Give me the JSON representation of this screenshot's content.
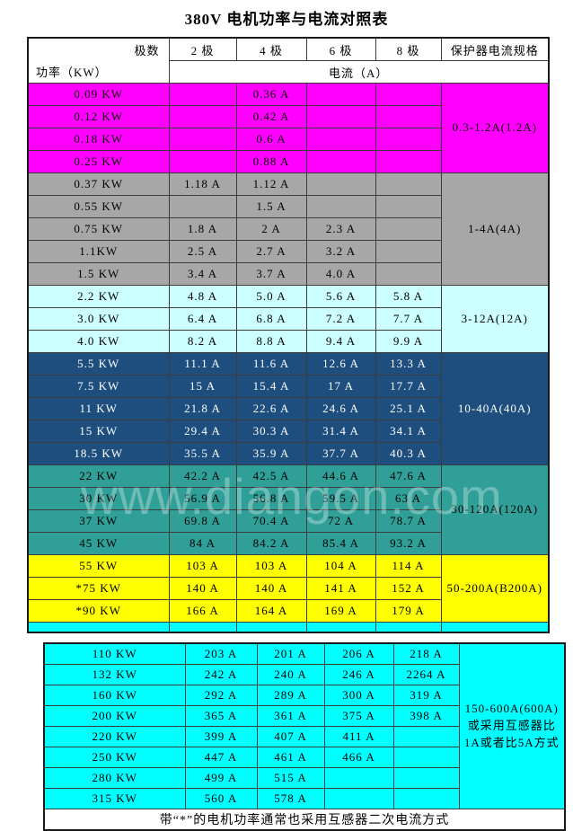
{
  "title": "380V 电机功率与电流对照表",
  "watermark": "www.diangon.com",
  "colors": {
    "magenta": "#ff00ff",
    "gray": "#a7a7a7",
    "light_cyan": "#ccffff",
    "navy": "#1d4e7e",
    "teal": "#2f9f97",
    "yellow": "#ffff00",
    "cyan": "#00ffff",
    "navy_text": "#ffffff"
  },
  "chart_data": {
    "type": "table",
    "title": "380V 电机功率与电流对照表",
    "header": {
      "corner_top": "极数",
      "corner_bottom": "功率（KW）",
      "poles": [
        "2 极",
        "4 极",
        "6 极",
        "8 极"
      ],
      "protection": "保护器电流规格",
      "current_label": "电流（A）"
    },
    "groups": [
      {
        "bg": "#ff00ff",
        "text": "#000000",
        "protection": "0.3-1.2A(1.2A)",
        "rows": [
          {
            "power": "0.09 KW",
            "currents": [
              "",
              "0.36 A",
              "",
              ""
            ]
          },
          {
            "power": "0.12 KW",
            "currents": [
              "",
              "0.42 A",
              "",
              ""
            ]
          },
          {
            "power": "0.18 KW",
            "currents": [
              "",
              "0.6 A",
              "",
              ""
            ]
          },
          {
            "power": "0.25 KW",
            "currents": [
              "",
              "0.88 A",
              "",
              ""
            ]
          }
        ]
      },
      {
        "bg": "#a7a7a7",
        "text": "#000000",
        "protection": "1-4A(4A)",
        "rows": [
          {
            "power": "0.37 KW",
            "currents": [
              "1.18 A",
              "1.12 A",
              "",
              ""
            ]
          },
          {
            "power": "0.55 KW",
            "currents": [
              "",
              "1.5 A",
              "",
              ""
            ]
          },
          {
            "power": "0.75 KW",
            "currents": [
              "1.8 A",
              "2 A",
              "2.3 A",
              ""
            ]
          },
          {
            "power": "1.1KW",
            "currents": [
              "2.5 A",
              "2.7 A",
              "3.2 A",
              ""
            ]
          },
          {
            "power": "1.5 KW",
            "currents": [
              "3.4 A",
              "3.7 A",
              "4.0 A",
              ""
            ]
          }
        ]
      },
      {
        "bg": "#ccffff",
        "text": "#000000",
        "protection": "3-12A(12A)",
        "rows": [
          {
            "power": "2.2 KW",
            "currents": [
              "4.8 A",
              "5.0 A",
              "5.6 A",
              "5.8 A"
            ]
          },
          {
            "power": "3.0 KW",
            "currents": [
              "6.4 A",
              "6.8 A",
              "7.2 A",
              "7.7 A"
            ]
          },
          {
            "power": "4.0 KW",
            "currents": [
              "8.2 A",
              "8.8 A",
              "9.4 A",
              "9.9 A"
            ]
          }
        ]
      },
      {
        "bg": "#1d4e7e",
        "text": "#ffffff",
        "protection": "10-40A(40A)",
        "rows": [
          {
            "power": "5.5 KW",
            "currents": [
              "11.1 A",
              "11.6 A",
              "12.6 A",
              "13.3 A"
            ]
          },
          {
            "power": "7.5 KW",
            "currents": [
              "15 A",
              "15.4 A",
              "17 A",
              "17.7 A"
            ]
          },
          {
            "power": "11 KW",
            "currents": [
              "21.8 A",
              "22.6 A",
              "24.6 A",
              "25.1 A"
            ]
          },
          {
            "power": "15 KW",
            "currents": [
              "29.4 A",
              "30.3 A",
              "31.4 A",
              "34.1 A"
            ]
          },
          {
            "power": "18.5 KW",
            "currents": [
              "35.5 A",
              "35.9 A",
              "37.7 A",
              "40.3 A"
            ]
          }
        ]
      },
      {
        "bg": "#2f9f97",
        "text": "#000000",
        "protection": "30-120A(120A)",
        "rows": [
          {
            "power": "22 KW",
            "currents": [
              "42.2 A",
              "42.5 A",
              "44.6 A",
              "47.6 A"
            ]
          },
          {
            "power": "30 KW",
            "currents": [
              "56.9 A",
              "56.8 A",
              "59.5 A",
              "63 A"
            ]
          },
          {
            "power": "37 KW",
            "currents": [
              "69.8 A",
              "70.4 A",
              "72 A",
              "78.7 A"
            ]
          },
          {
            "power": "45 KW",
            "currents": [
              "84 A",
              "84.2 A",
              "85.4 A",
              "93.2 A"
            ]
          }
        ]
      },
      {
        "bg": "#ffff00",
        "text": "#000000",
        "protection": "50-200A(B200A)",
        "rows": [
          {
            "power": "55 KW",
            "currents": [
              "103 A",
              "103 A",
              "104 A",
              "114 A"
            ]
          },
          {
            "power": "*75 KW",
            "currents": [
              "140 A",
              "140 A",
              "141 A",
              "152 A"
            ]
          },
          {
            "power": "*90 KW",
            "currents": [
              "166 A",
              "164 A",
              "169 A",
              "179 A"
            ]
          }
        ]
      }
    ],
    "partial_strip_color": "#00ffff",
    "table2": {
      "bg": "#00ffff",
      "text": "#000000",
      "protection": "150-600A(600A)或采用互感器比1A或者比5A方式",
      "rows": [
        {
          "power": "110 KW",
          "currents": [
            "203 A",
            "201 A",
            "206 A",
            "218 A"
          ]
        },
        {
          "power": "132 KW",
          "currents": [
            "242 A",
            "240 A",
            "246 A",
            "2264 A"
          ]
        },
        {
          "power": "160 KW",
          "currents": [
            "292 A",
            "289 A",
            "300 A",
            "319 A"
          ]
        },
        {
          "power": "200 KW",
          "currents": [
            "365 A",
            "361 A",
            "375 A",
            "398 A"
          ]
        },
        {
          "power": "220 KW",
          "currents": [
            "399 A",
            "407 A",
            "411 A",
            ""
          ]
        },
        {
          "power": "250 KW",
          "currents": [
            "447 A",
            "461 A",
            "466 A",
            ""
          ]
        },
        {
          "power": "280 KW",
          "currents": [
            "499 A",
            "515 A",
            "",
            ""
          ]
        },
        {
          "power": "315 KW",
          "currents": [
            "560 A",
            "578 A",
            "",
            ""
          ]
        }
      ],
      "footer": "带“*”的电机功率通常也采用互感器二次电流方式"
    }
  }
}
